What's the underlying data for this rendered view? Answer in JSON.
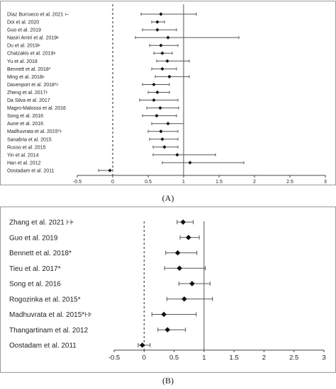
{
  "captions": {
    "a": "(A)",
    "b": "(B)"
  },
  "chart_data": [
    {
      "type": "forest",
      "xlim": [
        -0.5,
        3
      ],
      "x_ticks": [
        "-0.5",
        "0",
        "0.5",
        "1",
        "1.5",
        "2",
        "2.5",
        "3"
      ],
      "null_line_x": 0,
      "reference_line_x": 1,
      "studies": [
        {
          "label": "Díaz Burrueco et al. 2021 ⊢",
          "est": 0.68,
          "lo": 0.4,
          "hi": 1.18
        },
        {
          "label": "Doi et al. 2020",
          "est": 0.63,
          "lo": 0.55,
          "hi": 0.73
        },
        {
          "label": "Guo et al. 2019",
          "est": 0.63,
          "lo": 0.42,
          "hi": 0.9
        },
        {
          "label": "Nasiri Amiri et al. 2019⊧",
          "est": 0.78,
          "lo": 0.32,
          "hi": 1.78
        },
        {
          "label": "Du et al. 2019⊧",
          "est": 0.68,
          "lo": 0.52,
          "hi": 0.92
        },
        {
          "label": "Chatzakis et al. 2019⊧",
          "est": 0.7,
          "lo": 0.58,
          "hi": 0.84
        },
        {
          "label": "Yu et al. 2018",
          "est": 0.77,
          "lo": 0.62,
          "hi": 1.08
        },
        {
          "label": "Bennett et al. 2018*",
          "est": 0.7,
          "lo": 0.55,
          "hi": 0.9
        },
        {
          "label": "Ming et al. 2018⊧",
          "est": 0.8,
          "lo": 0.6,
          "hi": 1.08
        },
        {
          "label": "Davenport et al. 2018*⊦",
          "est": 0.58,
          "lo": 0.42,
          "hi": 0.8
        },
        {
          "label": "Zheng et al. 2017⊦",
          "est": 0.63,
          "lo": 0.5,
          "hi": 0.8
        },
        {
          "label": "Da Silva et al. 2017",
          "est": 0.58,
          "lo": 0.38,
          "hi": 0.92
        },
        {
          "label": "Magro-Malosso et al. 2016",
          "est": 0.67,
          "lo": 0.48,
          "hi": 0.93
        },
        {
          "label": "Song et al. 2016",
          "est": 0.62,
          "lo": 0.42,
          "hi": 0.9
        },
        {
          "label": "Aune et al. 2016",
          "est": 0.78,
          "lo": 0.55,
          "hi": 1.0
        },
        {
          "label": "Madhuvrata et al. 2015*⊦",
          "est": 0.68,
          "lo": 0.5,
          "hi": 0.92
        },
        {
          "label": "Sanabria et al. 2015",
          "est": 0.7,
          "lo": 0.52,
          "hi": 0.92
        },
        {
          "label": "Russo et al. 2015",
          "est": 0.73,
          "lo": 0.57,
          "hi": 0.92
        },
        {
          "label": "Yin et al. 2014",
          "est": 0.91,
          "lo": 0.57,
          "hi": 1.45
        },
        {
          "label": "Han et al. 2012",
          "est": 1.09,
          "lo": 0.7,
          "hi": 1.85
        },
        {
          "label": "Oostadam et al. 2011",
          "est": -0.04,
          "lo": -0.2,
          "hi": 0.0
        }
      ]
    },
    {
      "type": "forest",
      "xlim": [
        -0.5,
        3
      ],
      "x_ticks": [
        "-0.5",
        "0",
        "0.5",
        "1",
        "1.5",
        "2",
        "2.5",
        "3"
      ],
      "null_line_x": 0,
      "reference_line_x": 1,
      "studies": [
        {
          "label": "Zhang et al. 2021 ⊦⊧",
          "est": 0.65,
          "lo": 0.55,
          "hi": 0.82
        },
        {
          "label": "Guo et al. 2019",
          "est": 0.74,
          "lo": 0.6,
          "hi": 0.92
        },
        {
          "label": "Bennett et al. 2018*",
          "est": 0.56,
          "lo": 0.36,
          "hi": 0.88
        },
        {
          "label": "Tieu et al. 2017*",
          "est": 0.59,
          "lo": 0.34,
          "hi": 1.02
        },
        {
          "label": "Song et al. 2016",
          "est": 0.8,
          "lo": 0.58,
          "hi": 1.1
        },
        {
          "label": "Rogozinka et al. 2015*",
          "est": 0.67,
          "lo": 0.38,
          "hi": 1.14
        },
        {
          "label": "Madhuvrata et al. 2015*⊦⊧",
          "est": 0.33,
          "lo": 0.13,
          "hi": 0.87
        },
        {
          "label": "Thangartinam et al. 2012",
          "est": 0.39,
          "lo": 0.23,
          "hi": 0.69
        },
        {
          "label": "Oostadam et al. 2011",
          "est": -0.03,
          "lo": -0.1,
          "hi": 0.1
        }
      ]
    }
  ]
}
